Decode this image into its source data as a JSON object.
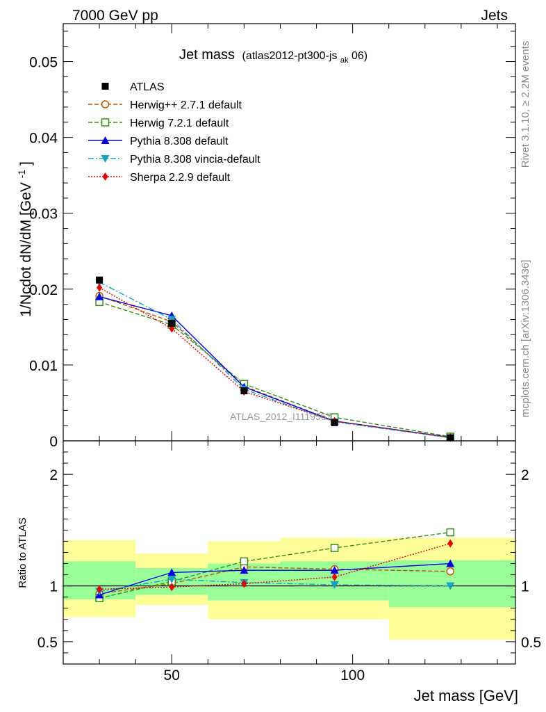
{
  "header": {
    "left": "7000 GeV pp",
    "right": "Jets"
  },
  "side_labels": {
    "rivet": "Rivet 3.1.10, ≥ 2.2M events",
    "mcplots": "mcplots.cern.ch [arXiv:1306.3436]"
  },
  "chart_data": {
    "type": "line",
    "title_main": "Jet mass",
    "title_sub_pre": "(atlas2012-pt300-js",
    "title_sub_subscript": "ak",
    "title_sub_post": "06)",
    "watermark": "ATLAS_2012_I1119557",
    "xlabel": "Jet mass [GeV]",
    "ylabel_main": "1/Ncdot dN/dM [GeV",
    "ylabel_main_sup": "-1",
    "ylabel_main_close": "]",
    "ylabel_ratio": "Ratio to ATLAS",
    "xlim": [
      20,
      145
    ],
    "ylim_main": [
      0,
      0.055
    ],
    "ylim_ratio": [
      0.3,
      2.3
    ],
    "main_yticks": [
      "0",
      "0.01",
      "0.02",
      "0.03",
      "0.04",
      "0.05"
    ],
    "main_ytick_values": [
      0,
      0.01,
      0.02,
      0.03,
      0.04,
      0.05
    ],
    "ratio_yticks": [
      "0.5",
      "1",
      "2"
    ],
    "ratio_ytick_values": [
      0.5,
      1,
      2
    ],
    "xticks": [
      "50",
      "100"
    ],
    "xtick_values": [
      50,
      100
    ],
    "x": [
      30,
      50,
      70,
      95,
      127
    ],
    "bins": [
      [
        20,
        40
      ],
      [
        40,
        60
      ],
      [
        60,
        80
      ],
      [
        80,
        110
      ],
      [
        110,
        145
      ]
    ],
    "data": {
      "name": "ATLAS",
      "values": [
        0.0212,
        0.0155,
        0.0066,
        0.0024,
        0.0004
      ],
      "band_inner": [
        [
          0.88,
          1.22
        ],
        [
          0.92,
          1.16
        ],
        [
          0.87,
          1.2
        ],
        [
          0.87,
          1.22
        ],
        [
          0.81,
          1.23
        ]
      ],
      "band_outer": [
        [
          0.72,
          1.41
        ],
        [
          0.83,
          1.29
        ],
        [
          0.7,
          1.4
        ],
        [
          0.7,
          1.43
        ],
        [
          0.52,
          1.43
        ]
      ]
    },
    "series": [
      {
        "name": "Herwig++ 2.7.1 default",
        "color": "#b35a00",
        "marker": "circle-open",
        "dash": "6,3",
        "values": [
          0.0191,
          0.0157,
          0.0072,
          0.0026,
          0.00047
        ],
        "ratio": [
          0.93,
          1.02,
          1.17,
          1.15,
          1.13
        ]
      },
      {
        "name": "Herwig 7.2.1 default",
        "color": "#3a8a1a",
        "marker": "square-open",
        "dash": "6,3",
        "values": [
          0.0183,
          0.0153,
          0.0075,
          0.0031,
          0.00055
        ],
        "ratio": [
          0.89,
          1.04,
          1.22,
          1.34,
          1.48
        ]
      },
      {
        "name": "Pythia 8.308 default",
        "color": "#0000dd",
        "marker": "triangle-up",
        "dash": "",
        "values": [
          0.019,
          0.0165,
          0.0071,
          0.0026,
          0.00045
        ],
        "ratio": [
          0.92,
          1.12,
          1.14,
          1.14,
          1.2
        ]
      },
      {
        "name": "Pythia 8.308 vincia-default",
        "color": "#1a9fc0",
        "marker": "triangle-down",
        "dash": "8,3,2,3",
        "values": [
          0.0209,
          0.016,
          0.0068,
          0.0025,
          0.0004
        ],
        "ratio": [
          0.95,
          1.06,
          1.03,
          1.01,
          1.0
        ]
      },
      {
        "name": "Sherpa 2.2.9 default",
        "color": "#e00000",
        "marker": "diamond",
        "dash": "2,2",
        "values": [
          0.0202,
          0.0148,
          0.0065,
          0.0026,
          0.00043
        ],
        "ratio": [
          0.97,
          0.99,
          1.02,
          1.08,
          1.38
        ]
      }
    ]
  }
}
